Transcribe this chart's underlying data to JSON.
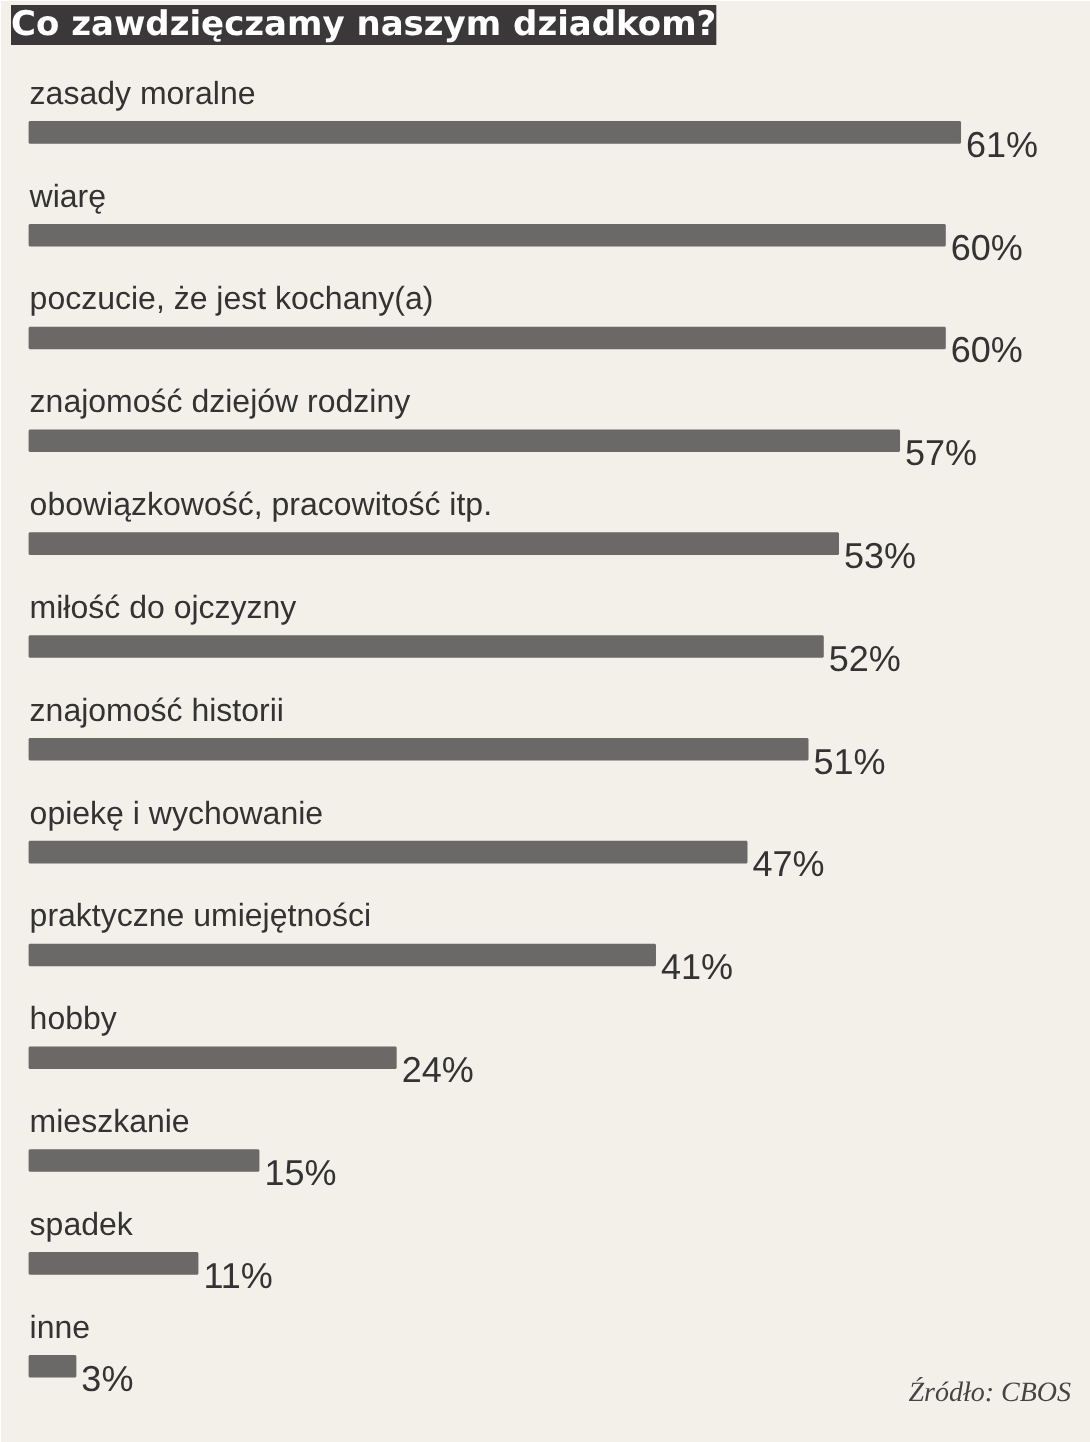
{
  "chart_data": {
    "type": "bar",
    "orientation": "horizontal",
    "title": "Co zawdzięczamy naszym dziadkom?",
    "categories": [
      "zasady moralne",
      "wiarę",
      "poczucie, że jest kochany(a)",
      "znajomość dziejów rodziny",
      "obowiązkowość, pracowitość itp.",
      "miłość do ojczyzny",
      "znajomość historii",
      "opiekę i wychowanie",
      "praktyczne umiejętności",
      "hobby",
      "mieszkanie",
      "spadek",
      "inne"
    ],
    "values": [
      61,
      60,
      60,
      57,
      53,
      52,
      51,
      47,
      41,
      24,
      15,
      11,
      3
    ],
    "color": "#6b6968",
    "value_labels": [
      "61%",
      "60%",
      "60%",
      "57%",
      "53%",
      "52%",
      "51%",
      "47%",
      "41%",
      "24%",
      "15%",
      "11%",
      "3%"
    ],
    "annotations": [
      "Źródło: CBOS"
    ]
  }
}
